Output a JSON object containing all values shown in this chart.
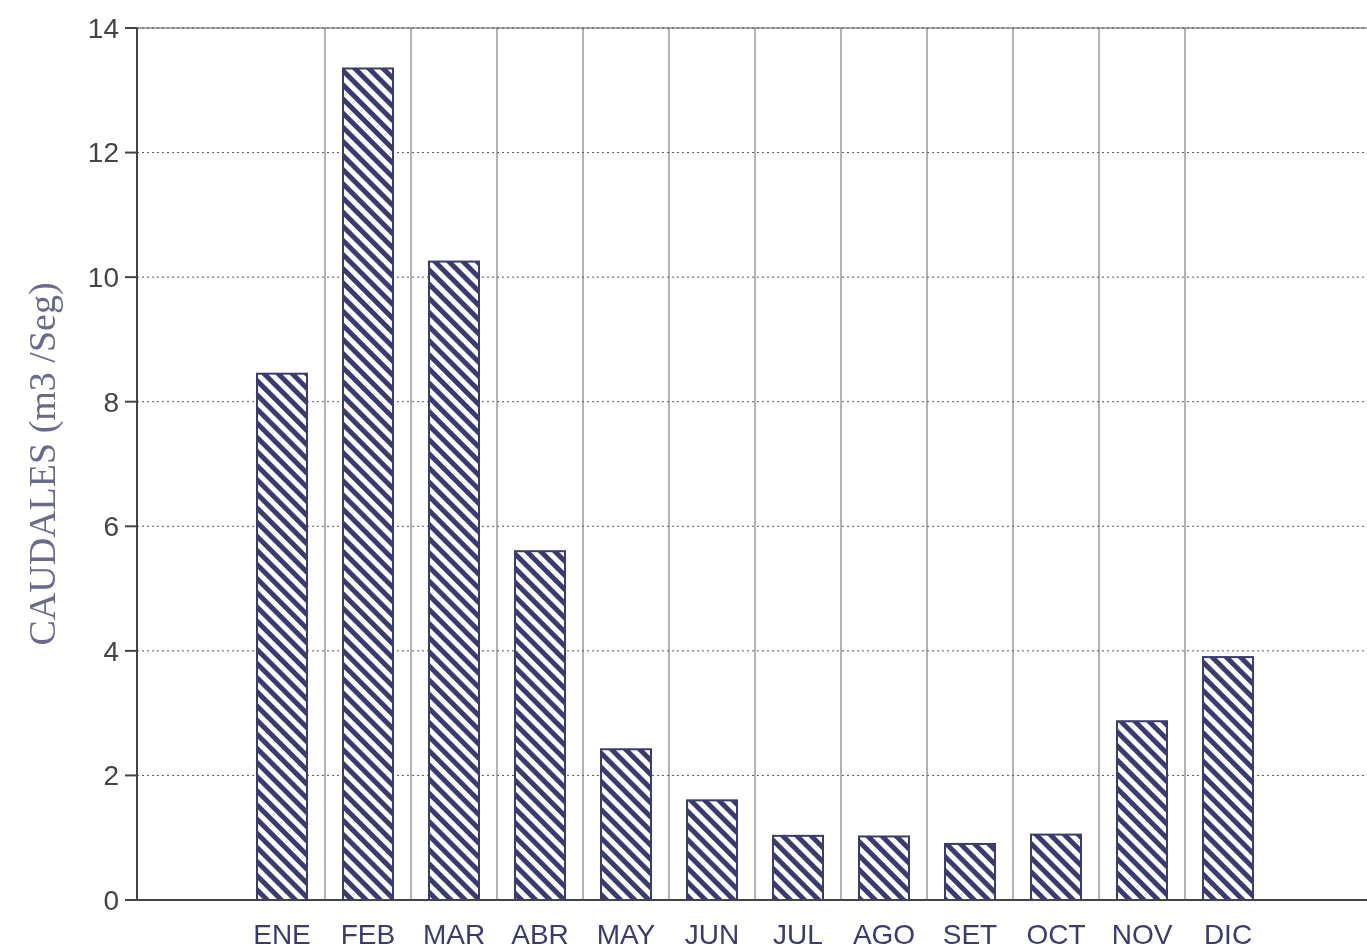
{
  "chart_data": {
    "type": "bar",
    "ylabel": "CAUDALES (m3 /Seg)",
    "categories": [
      "ENE",
      "FEB",
      "MAR",
      "ABR",
      "MAY",
      "JUN",
      "JUL",
      "AGO",
      "SET",
      "OCT",
      "NOV",
      "DIC"
    ],
    "values": [
      8.45,
      13.35,
      10.25,
      5.6,
      2.42,
      1.6,
      1.03,
      1.02,
      0.9,
      1.05,
      2.87,
      3.9
    ],
    "color": "#3b3b6e",
    "ylim": [
      0,
      14
    ],
    "yticks": [
      0,
      2,
      4,
      6,
      8,
      10,
      12,
      14
    ],
    "grid": true
  }
}
